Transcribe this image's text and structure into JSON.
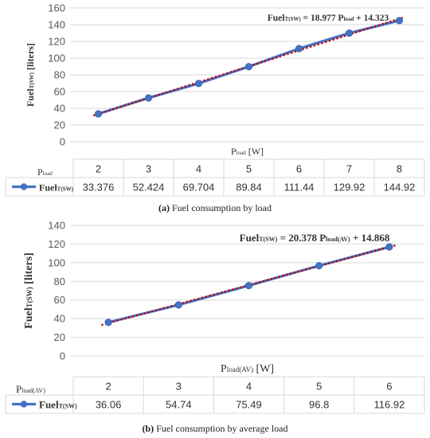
{
  "chart_data": [
    {
      "type": "line",
      "equation": {
        "base": "Fuel",
        "base_sub": "T(SW)",
        "eq1": " = 18.977 P",
        "eq1_sub": "load",
        "eq2": " + 14.323"
      },
      "xlabel": {
        "base": "P",
        "sub": "load",
        "unit": " [W]"
      },
      "ylabel": {
        "base": "Fuel",
        "sub": "T(SW)",
        "unit": " [liters]"
      },
      "ylim": [
        0,
        160
      ],
      "yticks": [
        "0",
        "20",
        "40",
        "60",
        "80",
        "100",
        "120",
        "140",
        "160"
      ],
      "categories": [
        "2",
        "3",
        "4",
        "5",
        "6",
        "7",
        "8"
      ],
      "table_header": {
        "base": "P",
        "sub": "load"
      },
      "series": [
        {
          "name_base": "Fuel",
          "name_sub": "T(SW)",
          "values": [
            33.376,
            52.424,
            69.704,
            89.84,
            111.44,
            129.92,
            144.92
          ],
          "labels": [
            "33.376",
            "52.424",
            "69.704",
            "89.84",
            "111.44",
            "129.92",
            "144.92"
          ]
        }
      ],
      "trendline": {
        "slope": 18.977,
        "intercept": 14.323
      },
      "caption": {
        "label": "(a)",
        "text": " Fuel consumption by load"
      }
    },
    {
      "type": "line",
      "equation": {
        "base": "Fuel",
        "base_sub": "T(SW)",
        "eq1": " = 20.378 P",
        "eq1_sub": "load(AV)",
        "eq2": " + 14.868"
      },
      "xlabel": {
        "base": "P",
        "sub": "load(AV)",
        "unit": " [W]"
      },
      "ylabel": {
        "base": "Fuel",
        "sub": "T(SW)",
        "unit": " [liters]"
      },
      "ylim": [
        0,
        140
      ],
      "yticks": [
        "0",
        "20",
        "40",
        "60",
        "80",
        "100",
        "120",
        "140"
      ],
      "categories": [
        "2",
        "3",
        "4",
        "5",
        "6"
      ],
      "table_header": {
        "base": "P",
        "sub": "load(AV)"
      },
      "series": [
        {
          "name_base": "Fuel",
          "name_sub": "T(SW)",
          "values": [
            36.06,
            54.74,
            75.49,
            96.8,
            116.92
          ],
          "labels": [
            "36.06",
            "54.74",
            "75.49",
            "96.8",
            "116.92"
          ]
        }
      ],
      "trendline": {
        "slope": 20.378,
        "intercept": 14.868
      },
      "caption": {
        "label": "(b)",
        "text": " Fuel consumption by average load"
      }
    }
  ],
  "colors": {
    "series": "#4472c4",
    "trend": "#c00000",
    "grid": "#d9d9d9"
  }
}
